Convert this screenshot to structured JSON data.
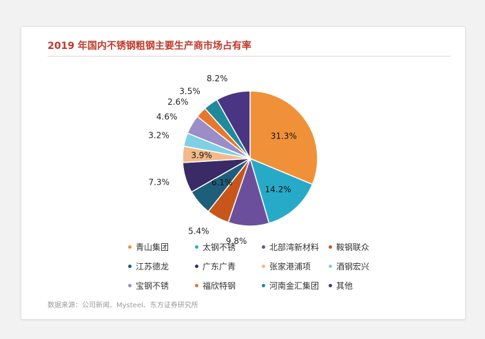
{
  "chart_data": {
    "type": "pie",
    "title": "2019 年国内不锈钢粗钢主要生产商市场占有率",
    "slices": [
      {
        "name": "青山集团",
        "value": 31.3,
        "label": "31.3%",
        "color": "#f0913a"
      },
      {
        "name": "太钢不锈",
        "value": 14.2,
        "label": "14.2%",
        "color": "#27aac8"
      },
      {
        "name": "北部湾新材料",
        "value": 9.8,
        "label": "9.8%",
        "color": "#6c4f9c"
      },
      {
        "name": "鞍钢联众",
        "value": 5.4,
        "label": "5.4%",
        "color": "#c8561b"
      },
      {
        "name": "江苏德龙",
        "value": 6.1,
        "label": "6.1%",
        "color": "#1d5f7a"
      },
      {
        "name": "广东广青",
        "value": 7.3,
        "label": "7.3%",
        "color": "#3a2b66"
      },
      {
        "name": "张家港浦项",
        "value": 3.9,
        "label": "3.9%",
        "color": "#f4b98a"
      },
      {
        "name": "酒钢宏兴",
        "value": 3.2,
        "label": "3.2%",
        "color": "#7fd0e4"
      },
      {
        "name": "宝钢不锈",
        "value": 4.6,
        "label": "4.6%",
        "color": "#9c8cc8"
      },
      {
        "name": "福欣特钢",
        "value": 2.6,
        "label": "2.6%",
        "color": "#e8772c"
      },
      {
        "name": "河南金汇集团",
        "value": 3.5,
        "label": "3.5%",
        "color": "#1f8a9c"
      },
      {
        "name": "其他",
        "value": 8.2,
        "label": "8.2%",
        "color": "#4a3582"
      }
    ]
  },
  "legend": [
    {
      "label": "青山集团",
      "color": "#f0913a"
    },
    {
      "label": "太钢不锈",
      "color": "#27aac8"
    },
    {
      "label": "北部湾新材料",
      "color": "#6c4f9c"
    },
    {
      "label": "鞍钢联众",
      "color": "#c8561b"
    },
    {
      "label": "江苏德龙",
      "color": "#1d5f7a"
    },
    {
      "label": "广东广青",
      "color": "#3a2b66"
    },
    {
      "label": "张家港浦项",
      "color": "#f4b98a"
    },
    {
      "label": "酒钢宏兴",
      "color": "#7fd0e4"
    },
    {
      "label": "宝钢不锈",
      "color": "#9c8cc8"
    },
    {
      "label": "福欣特钢",
      "color": "#e8772c"
    },
    {
      "label": "河南金汇集团",
      "color": "#1f8a9c"
    },
    {
      "label": "其他",
      "color": "#4a3582"
    }
  ],
  "source": "数据来源：公司新闻、Mysteel、东方证券研究所"
}
